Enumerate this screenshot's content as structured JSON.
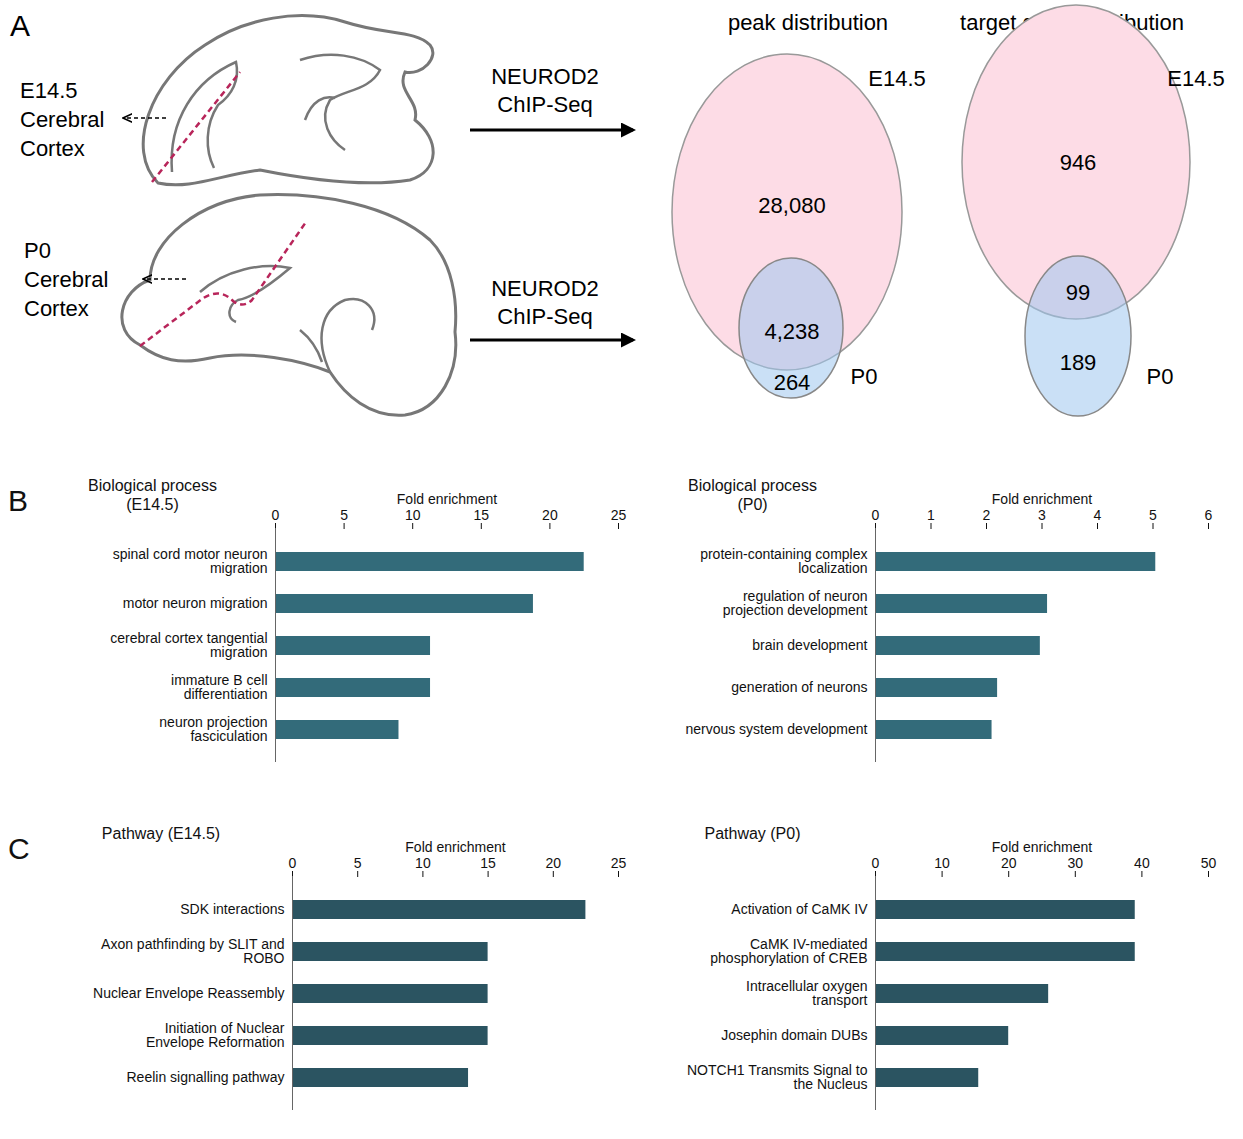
{
  "panel_a": {
    "letter": "A",
    "samples": [
      {
        "lines": [
          "E14.5",
          "Cerebral",
          "Cortex"
        ],
        "method": [
          "NEUROD2",
          "ChIP-Seq"
        ]
      },
      {
        "lines": [
          "P0",
          "Cerebral",
          "Cortex"
        ],
        "method": [
          "NEUROD2",
          "ChIP-Seq"
        ]
      }
    ],
    "venns": [
      {
        "title": "peak distribution",
        "sets": [
          "E14.5",
          "P0"
        ],
        "E14.5_only": {
          "value": 28080,
          "label": "28,080"
        },
        "both": {
          "value": 4238,
          "label": "4,238"
        },
        "P0_only": 264
      },
      {
        "title": "target gene distribution",
        "sets": [
          "E14.5",
          "P0"
        ],
        "E14.5_only": 946,
        "both": 99,
        "P0_only": 189
      }
    ]
  },
  "row_letters": [
    "B",
    "C"
  ],
  "chart_data": [
    {
      "type": "bar",
      "orientation": "horizontal",
      "title": [
        "Biological process",
        "(E14.5)"
      ],
      "xlabel": "Fold enrichment",
      "categories": [
        "spinal cord motor neuron migration",
        "motor neuron migration",
        "cerebral cortex tangential migration",
        "immature B cell differentiation",
        "neuron projection fasciculation"
      ],
      "values": [
        22.5,
        18.8,
        11.3,
        11.3,
        9.0
      ],
      "color": "#336b7a",
      "xlim": [
        0,
        25
      ],
      "xticks": [
        0,
        5,
        10,
        15,
        20,
        25
      ]
    },
    {
      "type": "bar",
      "orientation": "horizontal",
      "title": [
        "Biological process",
        "(P0)"
      ],
      "xlabel": "Fold enrichment",
      "categories": [
        "protein-containing complex localization",
        "regulation of neuron projection development",
        "brain development",
        "generation of neurons",
        "nervous system development"
      ],
      "values": [
        5.05,
        3.1,
        2.97,
        2.2,
        2.1
      ],
      "color": "#336b7a",
      "xlim": [
        0,
        6
      ],
      "xticks": [
        0,
        1,
        2,
        3,
        4,
        5,
        6
      ]
    },
    {
      "type": "bar",
      "orientation": "horizontal",
      "title": [
        "Pathway (E14.5)"
      ],
      "xlabel": "Fold enrichment",
      "categories": [
        "SDK interactions",
        "Axon pathfinding by SLIT and ROBO",
        "Nuclear Envelope Reassembly",
        "Initiation of Nuclear Envelope Reformation",
        "Reelin signalling pathway"
      ],
      "values": [
        22.5,
        15.0,
        15.0,
        15.0,
        13.5
      ],
      "color": "#2b5461",
      "xlim": [
        0,
        25
      ],
      "xticks": [
        0,
        5,
        10,
        15,
        20,
        25
      ]
    },
    {
      "type": "bar",
      "orientation": "horizontal",
      "title": [
        "Pathway (P0)"
      ],
      "xlabel": "Fold enrichment",
      "categories": [
        "Activation of CaMK IV",
        "CaMK IV-mediated phosphorylation of CREB",
        "Intracellular oxygen transport",
        "Josephin domain DUBs",
        "NOTCH1 Transmits Signal to the Nucleus"
      ],
      "values": [
        39.0,
        39.0,
        26.0,
        20.0,
        15.5
      ],
      "color": "#2b5461",
      "xlim": [
        0,
        50
      ],
      "xticks": [
        0,
        10,
        20,
        30,
        40,
        50
      ]
    }
  ]
}
